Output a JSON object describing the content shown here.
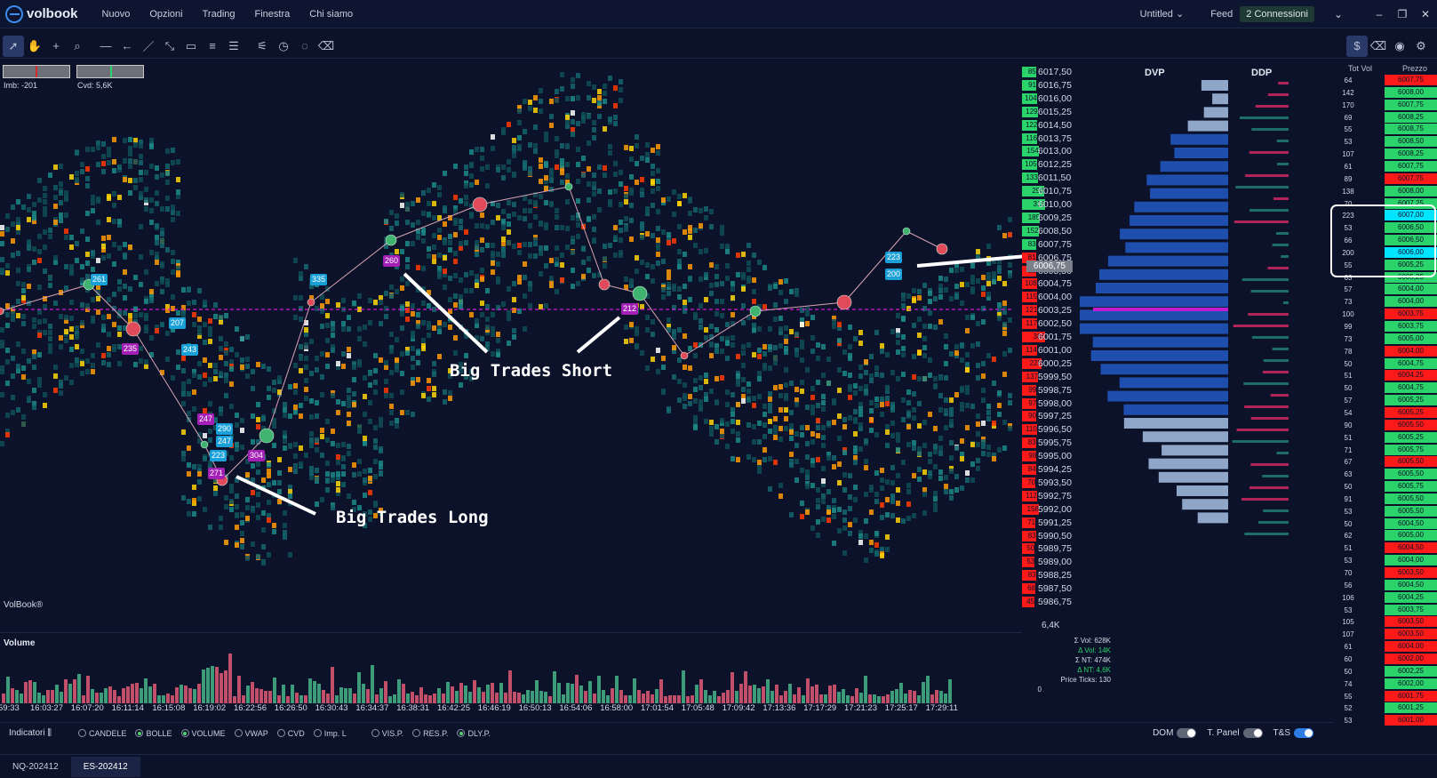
{
  "app": {
    "logo_text": "volbook"
  },
  "menu": {
    "items": [
      "Nuovo",
      "Opzioni",
      "Trading",
      "Finestra",
      "Chi siamo"
    ]
  },
  "topbar": {
    "workspace": "Untitled",
    "feed_label": "Feed",
    "connections": "2 Connessioni"
  },
  "chart_header": {
    "imb": "Imb: -201",
    "cvd": "Cvd: 5,6K"
  },
  "watermark": "VolBook®",
  "annotations": {
    "short": "Big Trades Short",
    "long": "Big Trades Long"
  },
  "big_trades": [
    "261",
    "207",
    "235",
    "243",
    "247",
    "290",
    "247",
    "223",
    "271",
    "304",
    "335",
    "260",
    "212",
    "223",
    "200",
    "304"
  ],
  "price_axis": {
    "last_price": "6006,75",
    "rows": [
      {
        "vol": "85",
        "price": "6017,50",
        "side": "buy"
      },
      {
        "vol": "91",
        "price": "6016,75",
        "side": "buy"
      },
      {
        "vol": "104",
        "price": "6016,00",
        "side": "buy"
      },
      {
        "vol": "129",
        "price": "6015,25",
        "side": "buy"
      },
      {
        "vol": "122",
        "price": "6014,50",
        "side": "buy"
      },
      {
        "vol": "116",
        "price": "6013,75",
        "side": "buy"
      },
      {
        "vol": "154",
        "price": "6013,00",
        "side": "buy"
      },
      {
        "vol": "105",
        "price": "6012,25",
        "side": "buy"
      },
      {
        "vol": "133",
        "price": "6011,50",
        "side": "buy"
      },
      {
        "vol": "290",
        "price": "6010,75",
        "side": "buy"
      },
      {
        "vol": "318",
        "price": "6010,00",
        "side": "buy"
      },
      {
        "vol": "185",
        "price": "6009,25",
        "side": "buy"
      },
      {
        "vol": "152",
        "price": "6008,50",
        "side": "buy"
      },
      {
        "vol": "83",
        "price": "6007,75",
        "side": "buy"
      },
      {
        "vol": "81",
        "price": "6006,75",
        "side": "sell"
      },
      {
        "vol": "88",
        "price": "6005,50",
        "side": "sell"
      },
      {
        "vol": "108",
        "price": "6004,75",
        "side": "sell"
      },
      {
        "vol": "115",
        "price": "6004,00",
        "side": "sell"
      },
      {
        "vol": "121",
        "price": "6003,25",
        "side": "sell"
      },
      {
        "vol": "117",
        "price": "6002,50",
        "side": "sell"
      },
      {
        "vol": "388",
        "price": "6001,75",
        "side": "sell"
      },
      {
        "vol": "114",
        "price": "6001,00",
        "side": "sell"
      },
      {
        "vol": "228",
        "price": "6000,25",
        "side": "sell"
      },
      {
        "vol": "137",
        "price": "5999,50",
        "side": "sell"
      },
      {
        "vol": "99",
        "price": "5998,75",
        "side": "sell"
      },
      {
        "vol": "97",
        "price": "5998,00",
        "side": "sell"
      },
      {
        "vol": "90",
        "price": "5997,25",
        "side": "sell"
      },
      {
        "vol": "110",
        "price": "5996,50",
        "side": "sell"
      },
      {
        "vol": "83",
        "price": "5995,75",
        "side": "sell"
      },
      {
        "vol": "98",
        "price": "5995,00",
        "side": "sell"
      },
      {
        "vol": "84",
        "price": "5994,25",
        "side": "sell"
      },
      {
        "vol": "70",
        "price": "5993,50",
        "side": "sell"
      },
      {
        "vol": "112",
        "price": "5992,75",
        "side": "sell"
      },
      {
        "vol": "158",
        "price": "5992,00",
        "side": "sell"
      },
      {
        "vol": "71",
        "price": "5991,25",
        "side": "sell"
      },
      {
        "vol": "83",
        "price": "5990,50",
        "side": "sell"
      },
      {
        "vol": "50",
        "price": "5989,75",
        "side": "sell"
      },
      {
        "vol": "53",
        "price": "5989,00",
        "side": "sell"
      },
      {
        "vol": "83",
        "price": "5988,25",
        "side": "sell"
      },
      {
        "vol": "68",
        "price": "5987,50",
        "side": "sell"
      },
      {
        "vol": "45",
        "price": "5986,75",
        "side": "sell"
      }
    ],
    "bottom_label": "6,4K"
  },
  "profiles": {
    "dvp_title": "DVP",
    "ddp_title": "DDP"
  },
  "ladder": {
    "headers": {
      "vol": "Tot Vol",
      "price": "Prezzo"
    },
    "rows": [
      {
        "vol": "64",
        "price": "6007,75",
        "color": "red"
      },
      {
        "vol": "142",
        "price": "6008,00",
        "color": "green"
      },
      {
        "vol": "170",
        "price": "6007,75",
        "color": "green"
      },
      {
        "vol": "69",
        "price": "6008,25",
        "color": "green"
      },
      {
        "vol": "55",
        "price": "6008,75",
        "color": "green"
      },
      {
        "vol": "53",
        "price": "6008,50",
        "color": "green"
      },
      {
        "vol": "107",
        "price": "6008,25",
        "color": "green"
      },
      {
        "vol": "61",
        "price": "6007,75",
        "color": "green"
      },
      {
        "vol": "89",
        "price": "6007,75",
        "color": "red"
      },
      {
        "vol": "138",
        "price": "6008,00",
        "color": "green"
      },
      {
        "vol": "70",
        "price": "6007,25",
        "color": "green"
      },
      {
        "vol": "223",
        "price": "6007,00",
        "color": "cyan"
      },
      {
        "vol": "53",
        "price": "6006,50",
        "color": "green"
      },
      {
        "vol": "66",
        "price": "6006,50",
        "color": "green"
      },
      {
        "vol": "200",
        "price": "6006,00",
        "color": "cyan"
      },
      {
        "vol": "55",
        "price": "6005,25",
        "color": "green"
      },
      {
        "vol": "63",
        "price": "6005,25",
        "color": "green"
      },
      {
        "vol": "57",
        "price": "6004,00",
        "color": "green"
      },
      {
        "vol": "73",
        "price": "6004,00",
        "color": "green"
      },
      {
        "vol": "100",
        "price": "6003,75",
        "color": "red"
      },
      {
        "vol": "99",
        "price": "6003,75",
        "color": "green"
      },
      {
        "vol": "73",
        "price": "6005,00",
        "color": "green"
      },
      {
        "vol": "78",
        "price": "6004,00",
        "color": "red"
      },
      {
        "vol": "50",
        "price": "6004,75",
        "color": "green"
      },
      {
        "vol": "51",
        "price": "6004,25",
        "color": "red"
      },
      {
        "vol": "50",
        "price": "6004,75",
        "color": "green"
      },
      {
        "vol": "57",
        "price": "6005,25",
        "color": "green"
      },
      {
        "vol": "54",
        "price": "6005,25",
        "color": "red"
      },
      {
        "vol": "90",
        "price": "6005,50",
        "color": "red"
      },
      {
        "vol": "51",
        "price": "6005,25",
        "color": "green"
      },
      {
        "vol": "71",
        "price": "6005,75",
        "color": "green"
      },
      {
        "vol": "67",
        "price": "6005,50",
        "color": "red"
      },
      {
        "vol": "63",
        "price": "6005,50",
        "color": "green"
      },
      {
        "vol": "50",
        "price": "6005,75",
        "color": "green"
      },
      {
        "vol": "91",
        "price": "6005,50",
        "color": "green"
      },
      {
        "vol": "53",
        "price": "6005,50",
        "color": "green"
      },
      {
        "vol": "50",
        "price": "6004,50",
        "color": "green"
      },
      {
        "vol": "62",
        "price": "6005,00",
        "color": "green"
      },
      {
        "vol": "51",
        "price": "6004,50",
        "color": "red"
      },
      {
        "vol": "53",
        "price": "6004,00",
        "color": "green"
      },
      {
        "vol": "70",
        "price": "6003,50",
        "color": "red"
      },
      {
        "vol": "56",
        "price": "6004,50",
        "color": "green"
      },
      {
        "vol": "106",
        "price": "6004,25",
        "color": "green"
      },
      {
        "vol": "53",
        "price": "6003,75",
        "color": "green"
      },
      {
        "vol": "105",
        "price": "6003,50",
        "color": "red"
      },
      {
        "vol": "107",
        "price": "6003,50",
        "color": "red"
      },
      {
        "vol": "61",
        "price": "6004,00",
        "color": "red"
      },
      {
        "vol": "60",
        "price": "6002,00",
        "color": "red"
      },
      {
        "vol": "50",
        "price": "6002,25",
        "color": "green"
      },
      {
        "vol": "74",
        "price": "6002,00",
        "color": "green"
      },
      {
        "vol": "55",
        "price": "6001,75",
        "color": "red"
      },
      {
        "vol": "52",
        "price": "6001,25",
        "color": "green"
      },
      {
        "vol": "53",
        "price": "6001,00",
        "color": "red"
      }
    ]
  },
  "volume_panel": {
    "title": "Volume"
  },
  "time_axis": [
    "59:33",
    "16:03:27",
    "16:07:20",
    "16:11:14",
    "16:15:08",
    "16:19:02",
    "16:22:56",
    "16:26:50",
    "16:30:43",
    "16:34:37",
    "16:38:31",
    "16:42:25",
    "16:46:19",
    "16:50:13",
    "16:54:06",
    "16:58:00",
    "17:01:54",
    "17:05:48",
    "17:09:42",
    "17:13:36",
    "17:17:29",
    "17:21:23",
    "17:25:17",
    "17:29:11"
  ],
  "stats": {
    "vol": "Σ Vol: 628K",
    "dvol": "Δ Vol: 14K",
    "nt": "Σ NT: 474K",
    "dnt": "Δ NT: 4,6K",
    "ticks": "Price Ticks: 130",
    "zero": "0"
  },
  "indicators": {
    "label": "Indicatori",
    "options": [
      {
        "label": "CANDELE",
        "on": false
      },
      {
        "label": "BOLLE",
        "on": true
      },
      {
        "label": "VOLUME",
        "on": true
      },
      {
        "label": "VWAP",
        "on": false
      },
      {
        "label": "CVD",
        "on": false
      },
      {
        "label": "Imp. L",
        "on": false
      },
      {
        "label": "VIS.P.",
        "on": false
      },
      {
        "label": "RES.P.",
        "on": false
      },
      {
        "label": "DLY.P.",
        "on": true
      }
    ],
    "toggles": [
      {
        "label": "DOM",
        "on": false
      },
      {
        "label": "T. Panel",
        "on": false
      },
      {
        "label": "T&S",
        "on": true
      }
    ]
  },
  "tabs": [
    {
      "label": "NQ-202412",
      "active": false
    },
    {
      "label": "ES-202412",
      "active": true
    }
  ],
  "colors": {
    "background": "#0b1229",
    "buy": "#2bd36b",
    "sell": "#ff1a1a",
    "cyan": "#00e5ff",
    "poc": "#c21bd0",
    "dvp_blue": "#1f4fae"
  }
}
